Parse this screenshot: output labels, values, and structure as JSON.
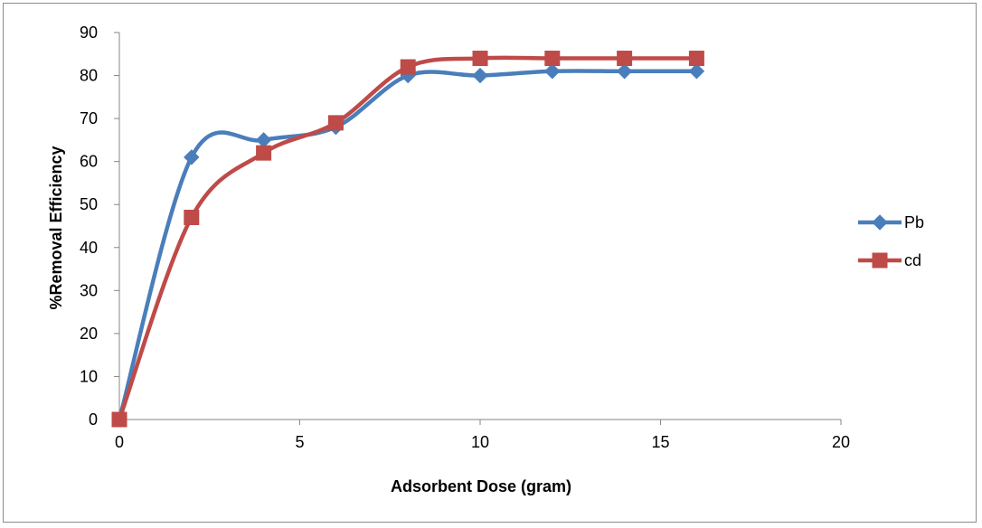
{
  "chart_data": {
    "type": "scatter",
    "title": "",
    "xlabel": "Adsorbent Dose (gram)",
    "ylabel": "%Removal Efficiency",
    "xlim": [
      0,
      20
    ],
    "ylim": [
      0,
      90
    ],
    "xticks": [
      0,
      5,
      10,
      15,
      20
    ],
    "yticks": [
      0,
      10,
      20,
      30,
      40,
      50,
      60,
      70,
      80,
      90
    ],
    "grid": false,
    "legend_position": "right",
    "smooth_lines": true,
    "series": [
      {
        "name": "Pb",
        "color": "#4a7ebb",
        "marker": "diamond",
        "x": [
          0,
          2,
          4,
          6,
          8,
          10,
          12,
          14,
          16
        ],
        "y": [
          0,
          61,
          65,
          68,
          80,
          80,
          81,
          81,
          81
        ]
      },
      {
        "name": "cd",
        "color": "#be4b48",
        "marker": "square",
        "x": [
          0,
          2,
          4,
          6,
          8,
          10,
          12,
          14,
          16
        ],
        "y": [
          0,
          47,
          62,
          69,
          82,
          84,
          84,
          84,
          84
        ]
      }
    ]
  }
}
